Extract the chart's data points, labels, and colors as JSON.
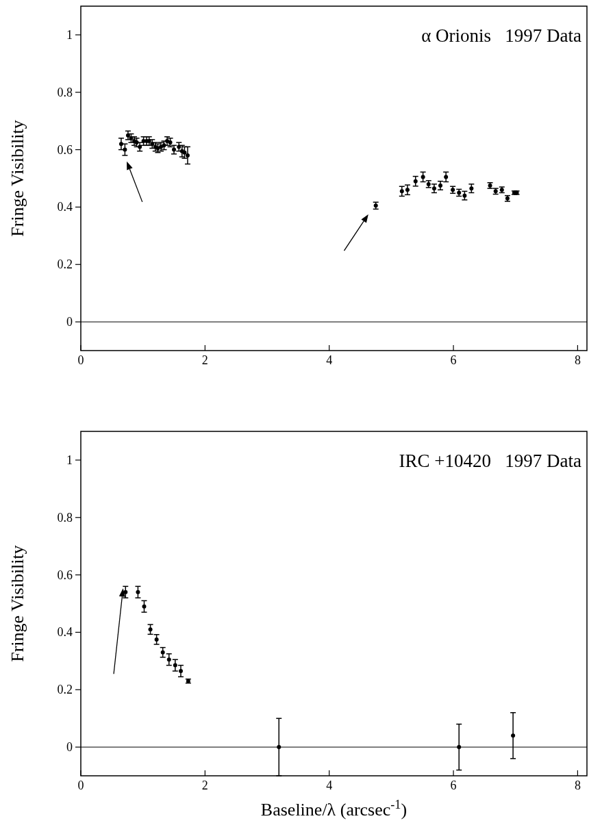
{
  "chart_data": [
    {
      "type": "scatter",
      "title": "α Orionis   1997 Data",
      "ylabel": "Fringe Visibility",
      "marker": "circle",
      "color": "#000000",
      "xlim": [
        0,
        8.15
      ],
      "ylim": [
        -0.1,
        1.1
      ],
      "xticks": [
        0,
        2,
        4,
        6,
        8
      ],
      "yticks": [
        0,
        0.2,
        0.4,
        0.6,
        0.8,
        1
      ],
      "ref_lines": [
        {
          "axis": "y",
          "value": 0,
          "color": "#000000"
        }
      ],
      "x": [
        0.65,
        0.71,
        0.76,
        0.81,
        0.86,
        0.9,
        0.95,
        1.01,
        1.06,
        1.1,
        1.15,
        1.2,
        1.24,
        1.29,
        1.34,
        1.39,
        1.44,
        1.5,
        1.58,
        1.63,
        1.67,
        1.72,
        4.75,
        5.17,
        5.26,
        5.39,
        5.51,
        5.6,
        5.69,
        5.79,
        5.88,
        5.99,
        6.09,
        6.18,
        6.29,
        6.59,
        6.68,
        6.78,
        6.87,
        6.98,
        7.02
      ],
      "values": [
        0.62,
        0.6,
        0.65,
        0.64,
        0.63,
        0.625,
        0.61,
        0.63,
        0.63,
        0.63,
        0.62,
        0.61,
        0.605,
        0.61,
        0.615,
        0.63,
        0.625,
        0.6,
        0.61,
        0.595,
        0.59,
        0.58,
        0.405,
        0.455,
        0.46,
        0.49,
        0.505,
        0.48,
        0.465,
        0.475,
        0.505,
        0.46,
        0.45,
        0.44,
        0.465,
        0.475,
        0.455,
        0.46,
        0.43,
        0.45,
        0.45
      ],
      "errors": [
        0.02,
        0.02,
        0.015,
        0.015,
        0.015,
        0.015,
        0.015,
        0.015,
        0.015,
        0.015,
        0.015,
        0.015,
        0.015,
        0.015,
        0.015,
        0.015,
        0.015,
        0.015,
        0.015,
        0.02,
        0.02,
        0.03,
        0.012,
        0.017,
        0.017,
        0.017,
        0.017,
        0.012,
        0.015,
        0.015,
        0.017,
        0.012,
        0.012,
        0.015,
        0.015,
        0.01,
        0.01,
        0.01,
        0.01,
        0.006,
        0.006
      ]
    },
    {
      "type": "scatter",
      "title": "IRC +10420   1997 Data",
      "xlabel": "Baseline/λ (arcsec$^{-1}$)",
      "ylabel": "Fringe Visibility",
      "marker": "circle",
      "color": "#000000",
      "xlim": [
        0,
        8.15
      ],
      "ylim": [
        -0.1,
        1.1
      ],
      "xticks": [
        0,
        2,
        4,
        6,
        8
      ],
      "yticks": [
        0,
        0.2,
        0.4,
        0.6,
        0.8,
        1
      ],
      "ref_lines": [
        {
          "axis": "y",
          "value": 0,
          "color": "#000000"
        }
      ],
      "x": [
        0.72,
        0.92,
        1.02,
        1.12,
        1.22,
        1.32,
        1.42,
        1.52,
        1.61,
        1.73,
        3.19,
        6.09,
        6.96
      ],
      "values": [
        0.54,
        0.54,
        0.49,
        0.41,
        0.375,
        0.33,
        0.305,
        0.285,
        0.265,
        0.23,
        0,
        0,
        0.04
      ],
      "errors": [
        0.02,
        0.02,
        0.02,
        0.017,
        0.017,
        0.017,
        0.02,
        0.02,
        0.02,
        0.007,
        0.1,
        0.08,
        0.08
      ]
    }
  ]
}
